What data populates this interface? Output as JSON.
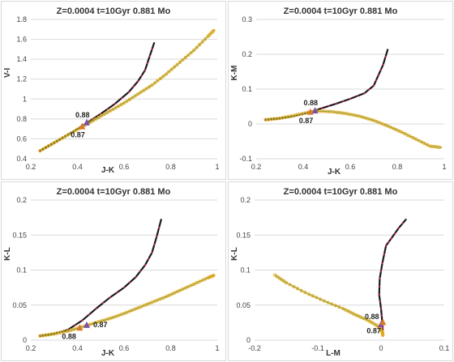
{
  "colors": {
    "black_track": "#1a1a1a",
    "magenta_markers": "#cc2266",
    "model_line": "#7a9a3a",
    "model_markers": "#e6a817",
    "triangle_088": "#7b4fa8",
    "triangle_087": "#d97a2b",
    "gridline": "#d9d9d9"
  },
  "chart_data": [
    {
      "type": "line",
      "title": "Z=0.0004  t=10Gyr  0.881 Mo",
      "xlabel": "J-K",
      "ylabel": "V-I",
      "xlim": [
        0.2,
        1.0
      ],
      "ylim": [
        0.4,
        1.8
      ],
      "xticks": [
        "0.2",
        "0.4",
        "0.6",
        "0.8",
        "1"
      ],
      "yticks": [
        "0.4",
        "0.6",
        "0.8",
        "1",
        "1.2",
        "1.4",
        "1.6",
        "1.8"
      ],
      "grid": "horizontal",
      "series": [
        {
          "style": "black-magenta",
          "x": [
            0.24,
            0.3,
            0.38,
            0.44,
            0.5,
            0.56,
            0.62,
            0.66,
            0.69,
            0.71,
            0.73
          ],
          "y": [
            0.48,
            0.56,
            0.67,
            0.76,
            0.85,
            0.95,
            1.07,
            1.18,
            1.29,
            1.43,
            1.57
          ]
        },
        {
          "style": "olive-orange",
          "x": [
            0.24,
            0.3,
            0.36,
            0.42,
            0.48,
            0.54,
            0.6,
            0.66,
            0.72,
            0.78,
            0.84,
            0.9,
            0.96,
            0.99
          ],
          "y": [
            0.48,
            0.56,
            0.64,
            0.72,
            0.8,
            0.88,
            0.96,
            1.05,
            1.14,
            1.25,
            1.37,
            1.49,
            1.63,
            1.7
          ]
        }
      ],
      "annotations": [
        {
          "text": "0.88",
          "x": 0.44,
          "y": 0.76,
          "color": "triangle_088"
        },
        {
          "text": "0.87",
          "x": 0.42,
          "y": 0.72,
          "color": "triangle_087"
        }
      ]
    },
    {
      "type": "line",
      "title": "Z=0.0004  t=10Gyr  0.881 Mo",
      "xlabel": "J-K",
      "ylabel": "K-M",
      "xlim": [
        0.2,
        1.0
      ],
      "ylim": [
        -0.1,
        0.3
      ],
      "xticks": [
        "0.2",
        "0.4",
        "0.6",
        "0.8",
        "1"
      ],
      "yticks": [
        "-0.1",
        "0",
        "0.1",
        "0.2",
        "0.3"
      ],
      "grid": "horizontal",
      "series": [
        {
          "style": "black-magenta",
          "x": [
            0.24,
            0.3,
            0.36,
            0.42,
            0.48,
            0.54,
            0.6,
            0.66,
            0.7,
            0.72,
            0.74,
            0.76
          ],
          "y": [
            0.012,
            0.016,
            0.022,
            0.032,
            0.045,
            0.058,
            0.072,
            0.088,
            0.11,
            0.14,
            0.17,
            0.215
          ]
        },
        {
          "style": "olive-orange",
          "x": [
            0.24,
            0.3,
            0.36,
            0.42,
            0.46,
            0.52,
            0.58,
            0.64,
            0.7,
            0.76,
            0.82,
            0.88,
            0.94,
            0.99
          ],
          "y": [
            0.012,
            0.016,
            0.024,
            0.033,
            0.037,
            0.035,
            0.03,
            0.022,
            0.01,
            -0.006,
            -0.024,
            -0.044,
            -0.064,
            -0.068
          ]
        }
      ],
      "annotations": [
        {
          "text": "0.88",
          "x": 0.45,
          "y": 0.037,
          "color": "triangle_088"
        },
        {
          "text": "0.87",
          "x": 0.43,
          "y": 0.033,
          "color": "triangle_087"
        }
      ]
    },
    {
      "type": "line",
      "title": "Z=0.0004  t=10Gyr  0.881 Mo",
      "xlabel": "J-K",
      "ylabel": "K-L",
      "xlim": [
        0.2,
        1.0
      ],
      "ylim": [
        0,
        0.2
      ],
      "xticks": [
        "0.2",
        "0.4",
        "0.6",
        "0.8",
        "1"
      ],
      "yticks": [
        "0",
        "0.05",
        "0.1",
        "0.15",
        "0.2"
      ],
      "grid": "horizontal",
      "series": [
        {
          "style": "black-magenta",
          "x": [
            0.24,
            0.3,
            0.36,
            0.42,
            0.48,
            0.54,
            0.6,
            0.65,
            0.69,
            0.72,
            0.74,
            0.76
          ],
          "y": [
            0.006,
            0.009,
            0.015,
            0.028,
            0.045,
            0.061,
            0.075,
            0.09,
            0.107,
            0.125,
            0.148,
            0.173
          ]
        },
        {
          "style": "olive-orange",
          "x": [
            0.24,
            0.3,
            0.36,
            0.42,
            0.48,
            0.54,
            0.6,
            0.66,
            0.72,
            0.78,
            0.84,
            0.9,
            0.96,
            0.99
          ],
          "y": [
            0.006,
            0.009,
            0.013,
            0.019,
            0.025,
            0.031,
            0.038,
            0.046,
            0.054,
            0.062,
            0.071,
            0.08,
            0.089,
            0.093
          ]
        }
      ],
      "annotations": [
        {
          "text": "0.88",
          "x": 0.41,
          "y": 0.017,
          "color": "triangle_087"
        },
        {
          "text": "0.87",
          "x": 0.44,
          "y": 0.021,
          "color": "triangle_088"
        }
      ]
    },
    {
      "type": "line",
      "title": "Z=0.0004  t=10Gyr  0.881 Mo",
      "xlabel": "L-M",
      "ylabel": "K-L",
      "xlim": [
        -0.2,
        0.1
      ],
      "ylim": [
        0,
        0.2
      ],
      "xticks": [
        "-0.2",
        "-0.1",
        "0",
        "0.1"
      ],
      "yticks": [
        "0",
        "0.05",
        "0.1",
        "0.15",
        "0.2"
      ],
      "grid": "horizontal",
      "series": [
        {
          "style": "black-magenta",
          "x": [
            0.003,
            0.002,
            0.0,
            -0.003,
            -0.002,
            0.002,
            0.008,
            0.016,
            0.028,
            0.04
          ],
          "y": [
            0.01,
            0.025,
            0.045,
            0.065,
            0.088,
            0.11,
            0.135,
            0.145,
            0.16,
            0.173
          ]
        },
        {
          "style": "olive-orange",
          "x": [
            -0.168,
            -0.15,
            -0.12,
            -0.09,
            -0.06,
            -0.04,
            -0.02,
            -0.005,
            0.002,
            0.003
          ],
          "y": [
            0.093,
            0.082,
            0.068,
            0.056,
            0.045,
            0.036,
            0.028,
            0.02,
            0.012,
            0.006
          ]
        }
      ],
      "annotations": [
        {
          "text": "0.88",
          "x": 0.0,
          "y": 0.022,
          "color": "triangle_088"
        },
        {
          "text": "0.87",
          "x": 0.003,
          "y": 0.025,
          "color": "triangle_087"
        }
      ]
    }
  ]
}
